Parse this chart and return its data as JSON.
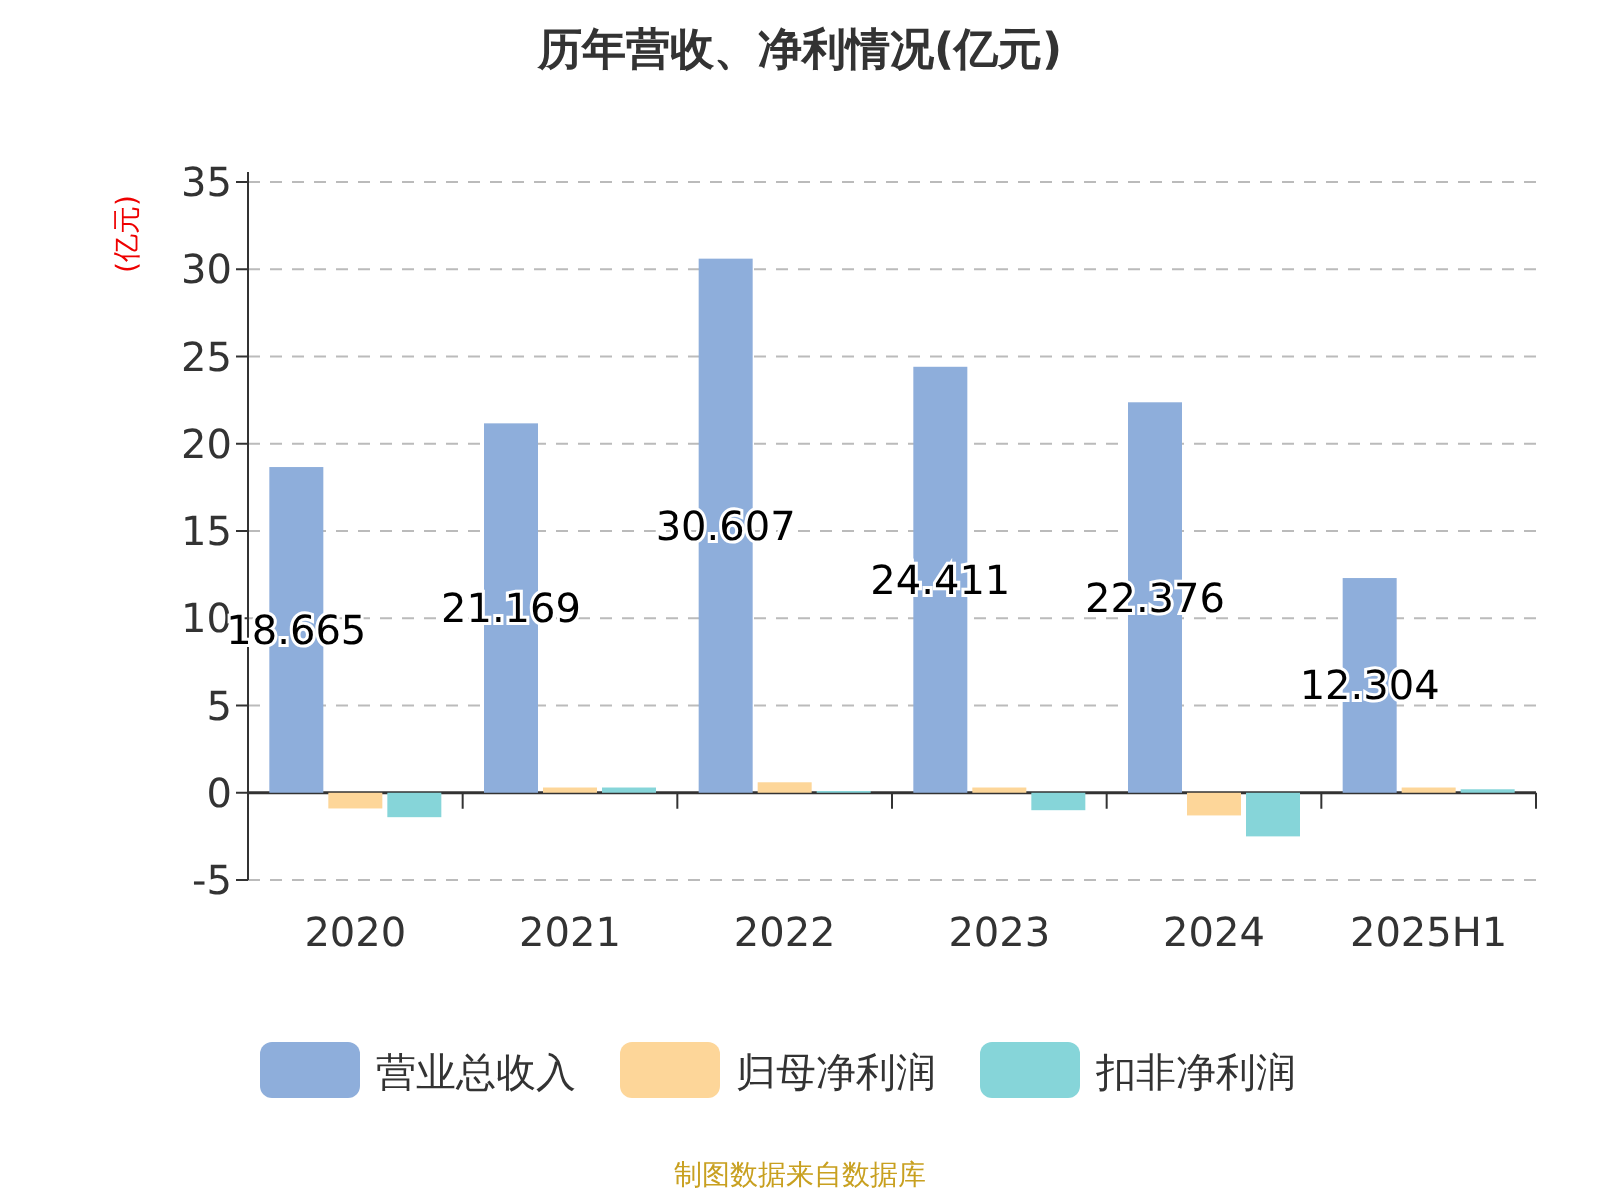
{
  "chart_data": {
    "type": "bar",
    "title": "历年营收、净利情况(亿元)",
    "ylabel": "(亿元)",
    "categories": [
      "2020",
      "2021",
      "2022",
      "2023",
      "2024",
      "2025H1"
    ],
    "series": [
      {
        "name": "营业总收入",
        "color": "#8eaedb",
        "values": [
          18.665,
          21.169,
          30.607,
          24.411,
          22.376,
          12.304
        ],
        "value_labels": [
          "18.665",
          "21.169",
          "30.607",
          "24.411",
          "22.376",
          "12.304"
        ]
      },
      {
        "name": "归母净利润",
        "color": "#fdd699",
        "values": [
          -0.9,
          0.3,
          0.6,
          0.3,
          -1.3,
          0.3
        ]
      },
      {
        "name": "扣非净利润",
        "color": "#86d5d9",
        "values": [
          -1.4,
          0.3,
          0.1,
          -1.0,
          -2.5,
          0.2
        ]
      }
    ],
    "ylim": [
      -5,
      35
    ],
    "yticks": [
      -5,
      0,
      5,
      10,
      15,
      20,
      25,
      30,
      35
    ],
    "grid": "y",
    "legend": "bottom",
    "annotations": [
      "制图数据来自数据库"
    ]
  }
}
